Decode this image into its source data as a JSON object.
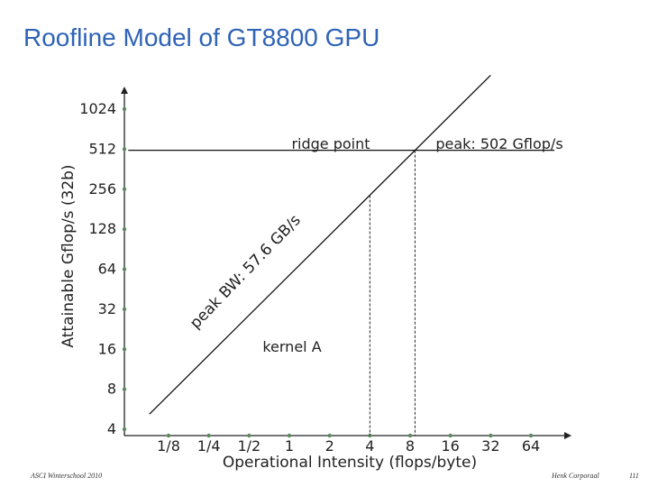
{
  "slide": {
    "title": "Roofline Model of GT8800 GPU",
    "footer_left": "ASCI Winterschool 2010",
    "footer_right": "Henk Corporaal",
    "page_number": "111"
  },
  "chart_data": {
    "type": "line",
    "title": "",
    "xlabel": "Operational Intensity (flops/byte)",
    "ylabel": "Attainable Gflop/s (32b)",
    "xscale": "log2",
    "yscale": "log2",
    "x_ticks": [
      0.125,
      0.25,
      0.5,
      1,
      2,
      4,
      8,
      16,
      32,
      64
    ],
    "x_tick_labels": [
      "1/8",
      "1/4",
      "1/2",
      "1",
      "2",
      "4",
      "8",
      "16",
      "32",
      "64"
    ],
    "y_ticks": [
      4,
      8,
      16,
      32,
      64,
      128,
      256,
      512,
      1024
    ],
    "y_tick_labels": [
      "4",
      "8",
      "16",
      "32",
      "64",
      "128",
      "256",
      "512",
      "1024"
    ],
    "xlim": [
      0.0625,
      128
    ],
    "ylim": [
      4,
      1200
    ],
    "series": [
      {
        "name": "peak BW: 57.6 GB/s",
        "x": [
          0.09,
          32
        ],
        "y": [
          5.2,
          1843.2
        ]
      },
      {
        "name": "peak: 502 Gflop/s",
        "x": [
          0.0625,
          96
        ],
        "y": [
          502,
          502
        ]
      }
    ],
    "ridge_x": 8.7,
    "vlines": [
      {
        "label": "kernel A",
        "x": 4
      },
      {
        "label": "ridge point",
        "x": 8.7
      }
    ],
    "annotations": {
      "peak_bw": "peak BW: 57.6 GB/s",
      "peak_flops": "peak: 502 Gflop/s",
      "ridge": "ridge point",
      "kernel": "kernel A"
    },
    "grid": false
  }
}
